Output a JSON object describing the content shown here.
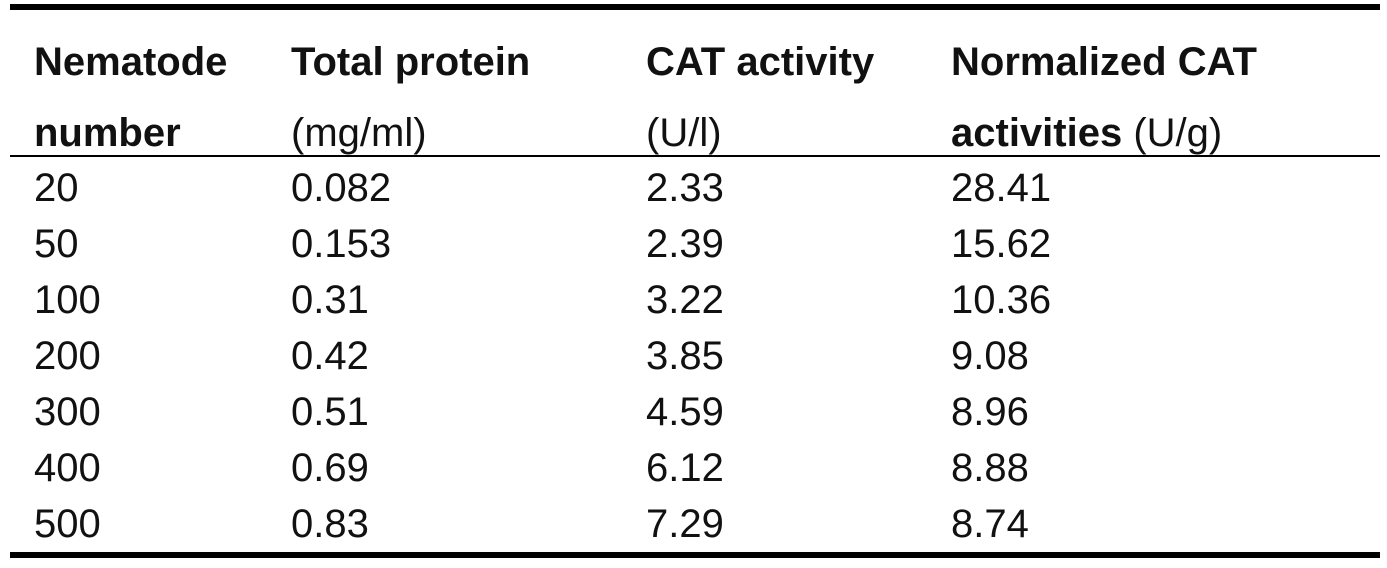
{
  "table": {
    "headers": [
      {
        "line1": "Nematode",
        "line2_bold": "number",
        "line2_normal": ""
      },
      {
        "line1": "Total protein",
        "line2_bold": "",
        "line2_normal": "(mg/ml)"
      },
      {
        "line1": "CAT activity",
        "line2_bold": "",
        "line2_normal": "(U/l)"
      },
      {
        "line1": "Normalized CAT",
        "line2_bold": "activities",
        "line2_normal": " (U/g)"
      }
    ],
    "rows": [
      [
        "20",
        "0.082",
        "2.33",
        "28.41"
      ],
      [
        "50",
        "0.153",
        "2.39",
        "15.62"
      ],
      [
        "100",
        "0.31",
        "3.22",
        "10.36"
      ],
      [
        "200",
        "0.42",
        "3.85",
        "9.08"
      ],
      [
        "300",
        "0.51",
        "4.59",
        "8.96"
      ],
      [
        "400",
        "0.69",
        "6.12",
        "8.88"
      ],
      [
        "500",
        "0.83",
        "7.29",
        "8.74"
      ]
    ]
  }
}
